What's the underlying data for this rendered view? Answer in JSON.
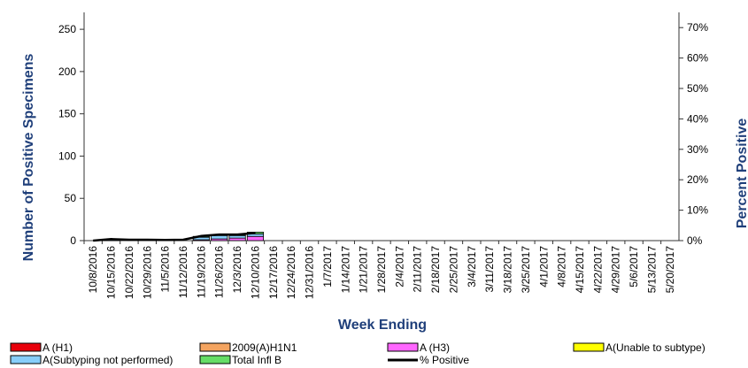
{
  "chart_data": {
    "type": "bar",
    "xlabel": "Week Ending",
    "ylabel": "Number of  Positive Specimens",
    "y2label": "Percent Positive",
    "ylim": [
      0,
      270
    ],
    "y2lim": [
      0,
      75
    ],
    "yticks": [
      "0",
      "50",
      "100",
      "150",
      "200",
      "250"
    ],
    "y2ticks": [
      "0%",
      "10%",
      "20%",
      "30%",
      "40%",
      "50%",
      "60%",
      "70%"
    ],
    "categories": [
      "10/8/2016",
      "10/15/2016",
      "10/22/2016",
      "10/29/2016",
      "11/5/2016",
      "11/12/2016",
      "11/19/2016",
      "11/26/2016",
      "12/3/2016",
      "12/10/2016",
      "12/17/2016",
      "12/24/2016",
      "12/31/2016",
      "1/7/2017",
      "1/14/2017",
      "1/21/2017",
      "1/28/2017",
      "2/4/2017",
      "2/11/2017",
      "2/18/2017",
      "2/25/2017",
      "3/4/2017",
      "3/11/2017",
      "3/18/2017",
      "3/25/2017",
      "4/1/2017",
      "4/8/2017",
      "4/15/2017",
      "4/22/2017",
      "4/29/2017",
      "5/6/2017",
      "5/13/2017",
      "5/20/2017"
    ],
    "stack_order": [
      "A (H1)",
      "2009(A)H1N1",
      "A (H3)",
      "A(Unable to subtype)",
      "A(Subtyping not performed)",
      "Total Infl B"
    ],
    "series": [
      {
        "name": "A (H1)",
        "color": "#e8000b",
        "values": [
          0,
          0,
          0,
          0,
          0,
          0,
          0,
          0,
          0,
          0,
          0,
          0,
          0,
          0,
          0,
          0,
          0,
          0,
          0,
          0,
          0,
          0,
          0,
          0,
          0,
          0,
          0,
          0,
          0,
          0,
          0,
          0,
          0
        ]
      },
      {
        "name": "2009(A)H1N1",
        "color": "#f4a460",
        "values": [
          0,
          0,
          0,
          0,
          0,
          0,
          0,
          0,
          0,
          0,
          0,
          0,
          0,
          0,
          0,
          0,
          0,
          0,
          0,
          0,
          0,
          0,
          0,
          0,
          0,
          0,
          0,
          0,
          0,
          0,
          0,
          0,
          0
        ]
      },
      {
        "name": "A (H3)",
        "color": "#ff66ff",
        "values": [
          0,
          0,
          0,
          0,
          0,
          0,
          1,
          2,
          3,
          5,
          0,
          0,
          0,
          0,
          0,
          0,
          0,
          0,
          0,
          0,
          0,
          0,
          0,
          0,
          0,
          0,
          0,
          0,
          0,
          0,
          0,
          0,
          0
        ]
      },
      {
        "name": "A(Unable to subtype)",
        "color": "#ffff00",
        "values": [
          0,
          0,
          0,
          0,
          0,
          0,
          0,
          0,
          0,
          0,
          0,
          0,
          0,
          0,
          0,
          0,
          0,
          0,
          0,
          0,
          0,
          0,
          0,
          0,
          0,
          0,
          0,
          0,
          0,
          0,
          0,
          0,
          0
        ]
      },
      {
        "name": "A(Subtyping not performed)",
        "color": "#87cefa",
        "values": [
          0,
          1,
          0,
          0,
          0,
          0,
          3,
          4,
          3,
          3,
          0,
          0,
          0,
          0,
          0,
          0,
          0,
          0,
          0,
          0,
          0,
          0,
          0,
          0,
          0,
          0,
          0,
          0,
          0,
          0,
          0,
          0,
          0
        ]
      },
      {
        "name": "Total Infl B",
        "color": "#66dd66",
        "values": [
          0,
          0,
          0,
          0,
          0,
          0,
          1,
          1,
          1,
          2,
          0,
          0,
          0,
          0,
          0,
          0,
          0,
          0,
          0,
          0,
          0,
          0,
          0,
          0,
          0,
          0,
          0,
          0,
          0,
          0,
          0,
          0,
          0
        ]
      }
    ],
    "line": {
      "name": "% Positive",
      "color": "#000000",
      "values": [
        0,
        0.5,
        0.3,
        0.3,
        0.2,
        0.3,
        1.5,
        2,
        2,
        2.5,
        null,
        null,
        null,
        null,
        null,
        null,
        null,
        null,
        null,
        null,
        null,
        null,
        null,
        null,
        null,
        null,
        null,
        null,
        null,
        null,
        null,
        null,
        null
      ]
    },
    "legend": [
      {
        "name": "A (H1)",
        "color": "#e8000b"
      },
      {
        "name": "2009(A)H1N1",
        "color": "#f4a460"
      },
      {
        "name": "A (H3)",
        "color": "#ff66ff"
      },
      {
        "name": "A(Unable to subtype)",
        "color": "#ffff00"
      },
      {
        "name": "A(Subtyping not performed)",
        "color": "#87cefa"
      },
      {
        "name": "Total Infl B",
        "color": "#66dd66"
      },
      {
        "name": "% Positive",
        "color": "#000000"
      }
    ],
    "legend_position": "bottom",
    "grid": false
  }
}
